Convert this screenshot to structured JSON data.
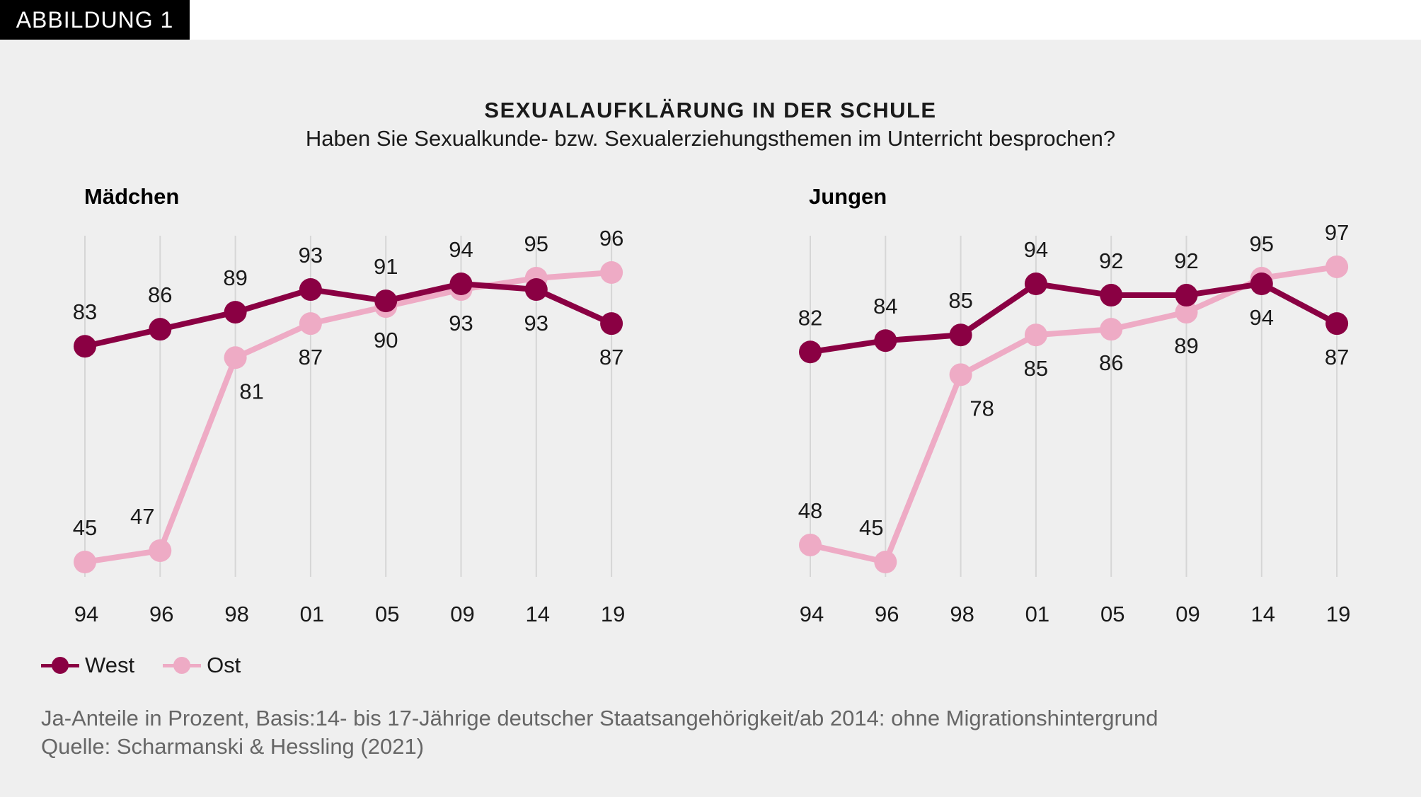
{
  "badge": "ABBILDUNG 1",
  "colors": {
    "west": "#8a0043",
    "ost": "#eeabc5",
    "grid": "#d6d6d6"
  },
  "legend": {
    "west": "West",
    "ost": "Ost"
  },
  "notes": {
    "line1": "Ja-Anteile in Prozent, Basis:14- bis 17-Jährige deutscher Staatsangehörigkeit/ab 2014: ohne Migrationshintergrund",
    "line2": "Quelle: Scharmanski & Hessling (2021)"
  },
  "chart_data": {
    "type": "line",
    "title": "SEXUALAUFKLÄRUNG IN DER SCHULE",
    "subtitle": "Haben Sie Sexualkunde- bzw. Sexualerziehungsthemen im Unterricht besprochen?",
    "legend_position": "bottom-left",
    "grid": "vertical",
    "panels": [
      {
        "title": "Mädchen",
        "categories": [
          "94",
          "96",
          "98",
          "01",
          "05",
          "09",
          "14",
          "19"
        ],
        "series": [
          {
            "name": "West",
            "values": [
              83,
              86,
              89,
              93,
              91,
              94,
              93,
              87
            ]
          },
          {
            "name": "Ost",
            "values": [
              45,
              47,
              81,
              87,
              90,
              93,
              95,
              96
            ]
          }
        ]
      },
      {
        "title": "Jungen",
        "categories": [
          "94",
          "96",
          "98",
          "01",
          "05",
          "09",
          "14",
          "19"
        ],
        "series": [
          {
            "name": "West",
            "values": [
              82,
              84,
              85,
              94,
              92,
              92,
              94,
              87
            ]
          },
          {
            "name": "Ost",
            "values": [
              48,
              45,
              78,
              85,
              86,
              89,
              95,
              97
            ]
          }
        ]
      }
    ]
  }
}
